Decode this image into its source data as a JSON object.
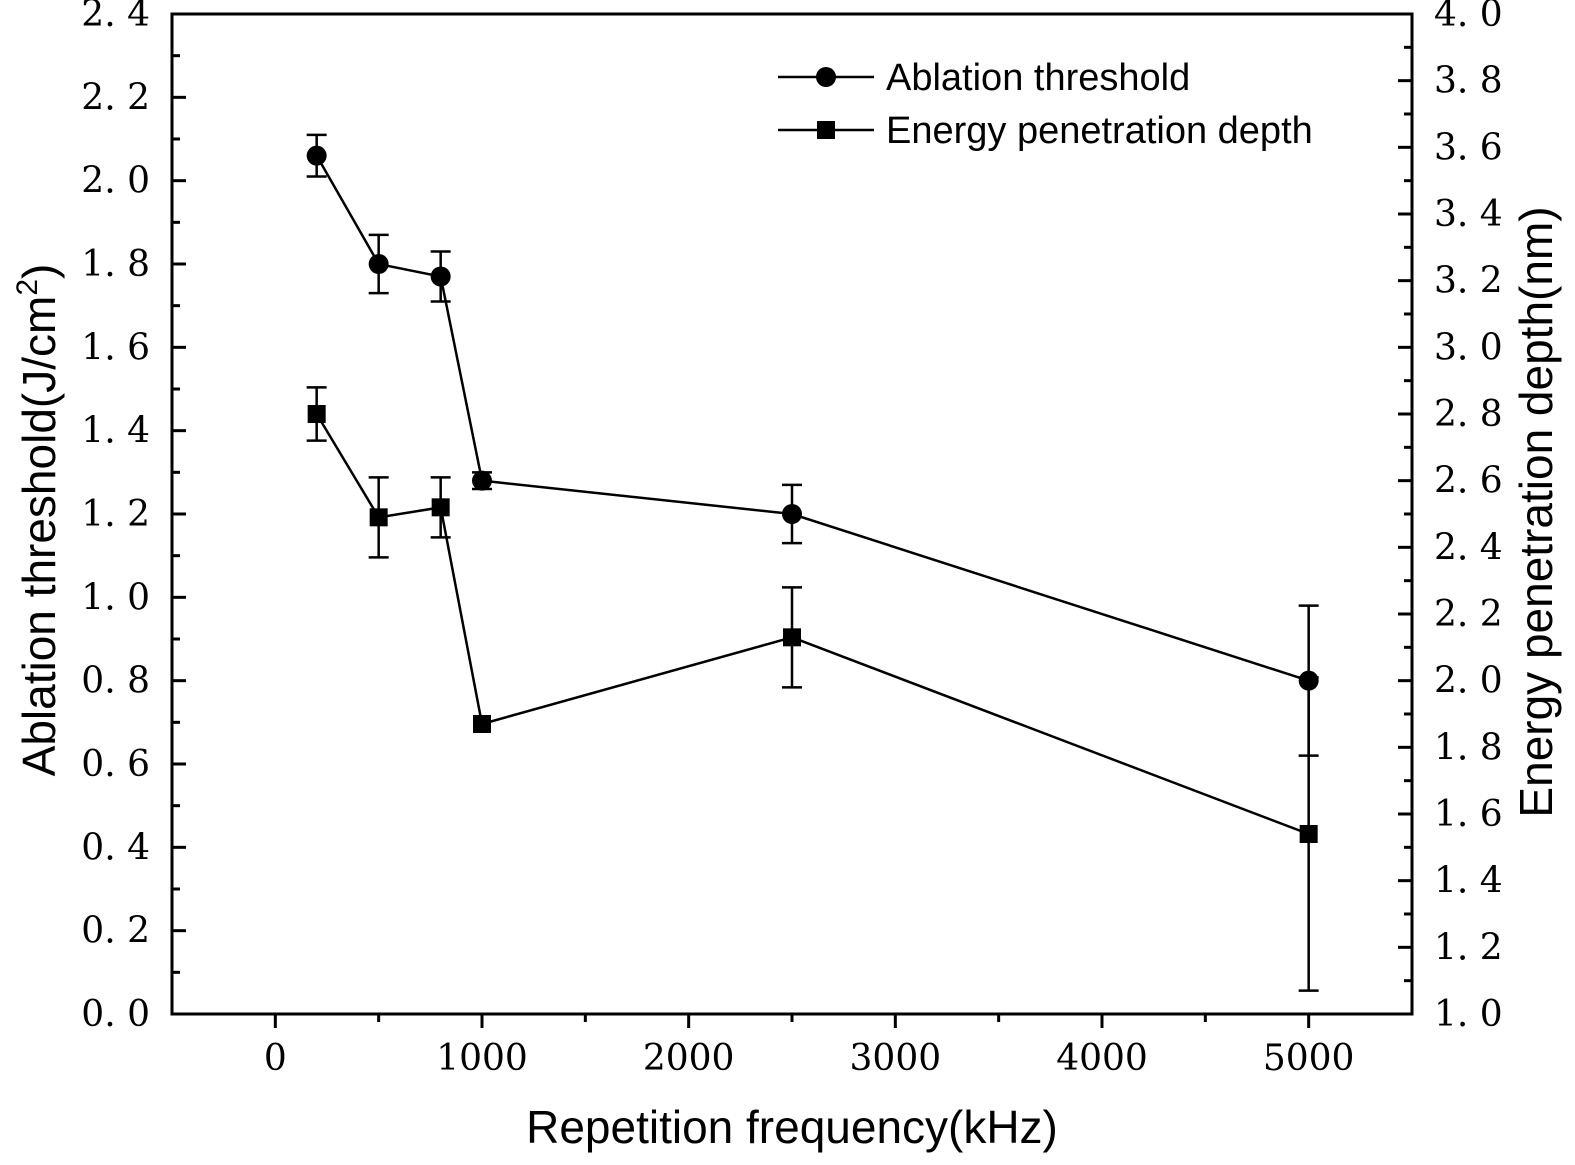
{
  "chart_data": {
    "type": "line",
    "x": [
      200,
      500,
      800,
      1000,
      2500,
      5000
    ],
    "xlabel": "Repetition frequency(kHz)",
    "xlim": [
      -500,
      5500
    ],
    "xticks": [
      0,
      1000,
      2000,
      3000,
      4000,
      5000
    ],
    "x_tick_labels": [
      "0",
      "1000",
      "2000",
      "3000",
      "4000",
      "5000"
    ],
    "ylabel_left": "Ablation threshold(J/cm",
    "ylabel_left_sup": "2",
    "ylabel_left_close": ")",
    "ylim_left": [
      0.0,
      2.4
    ],
    "yticks_left": [
      "0.0",
      "0.2",
      "0.4",
      "0.6",
      "0.8",
      "1.0",
      "1.2",
      "1.4",
      "1.6",
      "1.8",
      "2.0",
      "2.2",
      "2.4"
    ],
    "ylabel_right": "Energy penetration depth(nm)",
    "ylim_right": [
      1.0,
      4.0
    ],
    "yticks_right": [
      "1.0",
      "1.2",
      "1.4",
      "1.6",
      "1.8",
      "2.0",
      "2.2",
      "2.4",
      "2.6",
      "2.8",
      "3.0",
      "3.2",
      "3.4",
      "3.6",
      "3.8",
      "4.0"
    ],
    "grid": false,
    "legend_position": "top-right",
    "series": [
      {
        "name": "Ablation threshold",
        "axis": "left",
        "marker": "circle",
        "values": [
          2.06,
          1.8,
          1.77,
          1.28,
          1.2,
          0.8
        ],
        "errors": [
          0.05,
          0.07,
          0.06,
          0.02,
          0.07,
          0.18
        ]
      },
      {
        "name": "Energy penetration depth",
        "axis": "right",
        "marker": "square",
        "values": [
          2.8,
          2.49,
          2.52,
          1.87,
          2.13,
          1.54
        ],
        "errors": [
          0.08,
          0.12,
          0.09,
          0.0,
          0.15,
          0.47
        ]
      }
    ]
  }
}
